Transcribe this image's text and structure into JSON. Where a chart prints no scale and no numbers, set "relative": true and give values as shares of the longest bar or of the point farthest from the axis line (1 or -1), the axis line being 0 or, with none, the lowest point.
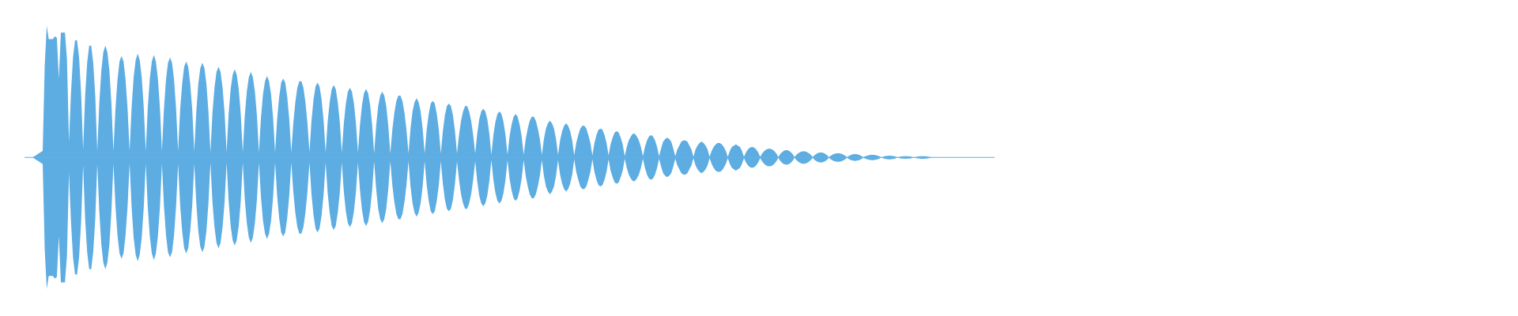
{
  "chart_data": {
    "type": "area",
    "relative": true,
    "categories": [
      null,
      null,
      null,
      null,
      null,
      null,
      null,
      null,
      null,
      null,
      null,
      null,
      null,
      null,
      null,
      null,
      null,
      null,
      null,
      null,
      null,
      null,
      null,
      null,
      null,
      null,
      null,
      null,
      null,
      null,
      null,
      null,
      null,
      null,
      null,
      null,
      null,
      null,
      null,
      null,
      null,
      null,
      null,
      null,
      null,
      null,
      null,
      null,
      null,
      null,
      null,
      null,
      null,
      null,
      null,
      null,
      null,
      null,
      null,
      null,
      null,
      null,
      null,
      null,
      null,
      null,
      null,
      null,
      null,
      null,
      null,
      null,
      null,
      null,
      null,
      null,
      null,
      null,
      null,
      null,
      null,
      null,
      null,
      null,
      null,
      null,
      null,
      null,
      null,
      null,
      null,
      null,
      null,
      null,
      null,
      null,
      null,
      null,
      null,
      null,
      null,
      null,
      null,
      null,
      null,
      null,
      null,
      null,
      null,
      null,
      null,
      null,
      null,
      null,
      null,
      null,
      null,
      null,
      null,
      null,
      null,
      null,
      null,
      null,
      null,
      null,
      null,
      null,
      null,
      null,
      null,
      null,
      null,
      null,
      null,
      null,
      null,
      null,
      null,
      null,
      null,
      null,
      null,
      null,
      null,
      null,
      null,
      null,
      null,
      null,
      null,
      null,
      null,
      null,
      null,
      null,
      null,
      null,
      null,
      null,
      null,
      null,
      null,
      null,
      null,
      null,
      null,
      null,
      null,
      null,
      null,
      null,
      null,
      null,
      null,
      null,
      null,
      null,
      null,
      null,
      null,
      null,
      null,
      null,
      null,
      null,
      null,
      null,
      null,
      null,
      null,
      null,
      null,
      null,
      null,
      null,
      null,
      null,
      null,
      null,
      null,
      null,
      null,
      null,
      null,
      null,
      null,
      null,
      null,
      null,
      null,
      null,
      null,
      null,
      null,
      null,
      null,
      null,
      null,
      null,
      null,
      null,
      null,
      null,
      null,
      null,
      null,
      null,
      null,
      null,
      null,
      null,
      null,
      null,
      null,
      null,
      null,
      null,
      null,
      null,
      null,
      null,
      null,
      null,
      null,
      null,
      null,
      null,
      null,
      null,
      null,
      null,
      null,
      null,
      null,
      null,
      null,
      null,
      null,
      null,
      null,
      null,
      null,
      null,
      null,
      null,
      null,
      null,
      null,
      null,
      null,
      null,
      null,
      null,
      null,
      null,
      null,
      null,
      null,
      null,
      null,
      null,
      null,
      null,
      null,
      null,
      null,
      null,
      null,
      null,
      null,
      null,
      null,
      null,
      null,
      null,
      null,
      null,
      null,
      null,
      null,
      null,
      null,
      null,
      null,
      null,
      null,
      null,
      null,
      null,
      null,
      null,
      null,
      null,
      null,
      null,
      null,
      null,
      null,
      null,
      null,
      null,
      null,
      null,
      null,
      null,
      null,
      null,
      null,
      null,
      null,
      null,
      null,
      null,
      null,
      null,
      null,
      null,
      null,
      null,
      null,
      null,
      null,
      null,
      null,
      null,
      null,
      null,
      null,
      null,
      null,
      null,
      null,
      null,
      null,
      null,
      null,
      null,
      null,
      null,
      null,
      null,
      null,
      null,
      null,
      null,
      null,
      null,
      null,
      null,
      null,
      null,
      null,
      null,
      null,
      null,
      null,
      null,
      null,
      null,
      null,
      null,
      null,
      null,
      null,
      null,
      null,
      null,
      null,
      null,
      null,
      null,
      null,
      null,
      null,
      null,
      null,
      null,
      null,
      null,
      null,
      null,
      null,
      null,
      null,
      null,
      null,
      null,
      null,
      null,
      null,
      null,
      null,
      null,
      null,
      null,
      null,
      null,
      null,
      null,
      null,
      null,
      null,
      null,
      null,
      null,
      null,
      null,
      null,
      null,
      null,
      null,
      null,
      null,
      null,
      null,
      null,
      null,
      null,
      null,
      null,
      null,
      null,
      null,
      null,
      null,
      null,
      null,
      null,
      null,
      null,
      null,
      null,
      null,
      null,
      null,
      null,
      null,
      null,
      null,
      null,
      null,
      null,
      null,
      null,
      null,
      null,
      null,
      null,
      null,
      null,
      null,
      null,
      null,
      null,
      null,
      null,
      null,
      null,
      null,
      null
    ],
    "series": [
      {
        "color": "#5dade2",
        "values": [
          0,
          0,
          0,
          0,
          0,
          0.01,
          0.02,
          0.03,
          0.04,
          0.05,
          0.7,
          1,
          0.9,
          0.9,
          0.9,
          0.92,
          0.91,
          0.6,
          0.95,
          0.95,
          0.95,
          0.75,
          0.12,
          0.49,
          0.76,
          0.89,
          0.89,
          0.76,
          0.49,
          0.06,
          0.47,
          0.72,
          0.85,
          0.85,
          0.72,
          0.47,
          0.05,
          0.41,
          0.66,
          0.8,
          0.85,
          0.8,
          0.66,
          0.41,
          0.05,
          0.37,
          0.59,
          0.73,
          0.77,
          0.73,
          0.59,
          0.37,
          0.05,
          0.38,
          0.61,
          0.74,
          0.79,
          0.74,
          0.61,
          0.38,
          0.05,
          0.38,
          0.6,
          0.73,
          0.78,
          0.73,
          0.6,
          0.38,
          0.05,
          0.37,
          0.59,
          0.72,
          0.76,
          0.72,
          0.59,
          0.37,
          0.05,
          0.36,
          0.56,
          0.69,
          0.73,
          0.69,
          0.56,
          0.36,
          0.05,
          0.35,
          0.56,
          0.68,
          0.72,
          0.68,
          0.56,
          0.35,
          0.04,
          0.34,
          0.53,
          0.65,
          0.69,
          0.65,
          0.53,
          0.34,
          0.04,
          0.33,
          0.52,
          0.63,
          0.67,
          0.63,
          0.52,
          0.33,
          0.04,
          0.32,
          0.5,
          0.61,
          0.65,
          0.61,
          0.5,
          0.32,
          0.04,
          0.3,
          0.48,
          0.58,
          0.62,
          0.58,
          0.48,
          0.3,
          0.04,
          0.29,
          0.46,
          0.57,
          0.6,
          0.57,
          0.46,
          0.29,
          0.04,
          0.26,
          0.42,
          0.53,
          0.58,
          0.58,
          0.53,
          0.42,
          0.26,
          0.04,
          0.28,
          0.44,
          0.54,
          0.57,
          0.54,
          0.44,
          0.28,
          0.04,
          0.27,
          0.42,
          0.52,
          0.55,
          0.52,
          0.42,
          0.27,
          0.04,
          0.26,
          0.41,
          0.5,
          0.53,
          0.5,
          0.41,
          0.26,
          0.04,
          0.25,
          0.4,
          0.49,
          0.52,
          0.49,
          0.4,
          0.25,
          0.03,
          0.24,
          0.39,
          0.47,
          0.5,
          0.47,
          0.39,
          0.24,
          0.03,
          0.21,
          0.34,
          0.43,
          0.47,
          0.47,
          0.43,
          0.34,
          0.21,
          0.03,
          0.22,
          0.35,
          0.42,
          0.45,
          0.42,
          0.35,
          0.22,
          0.03,
          0.21,
          0.33,
          0.41,
          0.43,
          0.41,
          0.33,
          0.21,
          0.03,
          0.2,
          0.32,
          0.39,
          0.41,
          0.39,
          0.32,
          0.2,
          0.03,
          0.17,
          0.28,
          0.35,
          0.39,
          0.39,
          0.35,
          0.28,
          0.17,
          0.03,
          0.18,
          0.29,
          0.35,
          0.37,
          0.35,
          0.29,
          0.18,
          0.02,
          0.17,
          0.27,
          0.33,
          0.35,
          0.33,
          0.27,
          0.17,
          0.02,
          0.16,
          0.25,
          0.31,
          0.33,
          0.31,
          0.25,
          0.16,
          0.02,
          0.14,
          0.22,
          0.28,
          0.31,
          0.31,
          0.28,
          0.22,
          0.14,
          0.02,
          0.14,
          0.22,
          0.26,
          0.28,
          0.26,
          0.22,
          0.14,
          0.02,
          0.13,
          0.2,
          0.24,
          0.26,
          0.24,
          0.2,
          0.13,
          0.015,
          0.11,
          0.17,
          0.22,
          0.24,
          0.24,
          0.22,
          0.17,
          0.11,
          0.015,
          0.11,
          0.17,
          0.21,
          0.22,
          0.21,
          0.17,
          0.11,
          0.015,
          0.1,
          0.15,
          0.19,
          0.2,
          0.19,
          0.15,
          0.1,
          0.01,
          0.08,
          0.13,
          0.16,
          0.18,
          0.18,
          0.16,
          0.13,
          0.08,
          0.01,
          0.08,
          0.13,
          0.16,
          0.17,
          0.16,
          0.13,
          0.08,
          0.01,
          0.07,
          0.12,
          0.14,
          0.15,
          0.14,
          0.12,
          0.07,
          0.01,
          0.06,
          0.09,
          0.12,
          0.13,
          0.13,
          0.12,
          0.09,
          0.06,
          0.005,
          0.06,
          0.09,
          0.11,
          0.12,
          0.11,
          0.09,
          0.06,
          0.005,
          0.05,
          0.08,
          0.1,
          0.11,
          0.11,
          0.1,
          0.08,
          0.05,
          0.005,
          0.05,
          0.08,
          0.09,
          0.1,
          0.09,
          0.08,
          0.05,
          0.005,
          0.039,
          0.062,
          0.075,
          0.08,
          0.075,
          0.062,
          0.039,
          0.005,
          0.03,
          0.049,
          0.061,
          0.067,
          0.067,
          0.061,
          0.049,
          0.03,
          0.003,
          0.027,
          0.043,
          0.053,
          0.056,
          0.053,
          0.043,
          0.027,
          0.003,
          0.021,
          0.034,
          0.043,
          0.047,
          0.047,
          0.043,
          0.034,
          0.021,
          0.003,
          0.019,
          0.029,
          0.036,
          0.038,
          0.036,
          0.029,
          0.019,
          0.002,
          0.014,
          0.023,
          0.029,
          0.032,
          0.032,
          0.029,
          0.023,
          0.014,
          0.002,
          0.013,
          0.02,
          0.024,
          0.026,
          0.024,
          0.02,
          0.013,
          0.002,
          0.009,
          0.014,
          0.018,
          0.02,
          0.02,
          0.018,
          0.014,
          0.009,
          0,
          0.007,
          0.011,
          0.013,
          0.014,
          0.013,
          0.011,
          0.007,
          0,
          0.005,
          0.008,
          0.009,
          0.01,
          0.009,
          0.008,
          0.005,
          0,
          0.004,
          0.007,
          0.009,
          0.01,
          0.01,
          0.009,
          0.007,
          0.004,
          0,
          0,
          0,
          0,
          0,
          0,
          0,
          0,
          0,
          0,
          0,
          0,
          0,
          0,
          0,
          0,
          0,
          0,
          0,
          0,
          0,
          0,
          0,
          0,
          0,
          0,
          0,
          0,
          0,
          0,
          0,
          0
        ]
      },
      {
        "color": "#5dade2",
        "values": [
          0,
          0,
          0,
          0,
          0,
          -0.01,
          -0.02,
          -0.03,
          -0.04,
          -0.05,
          -0.7,
          -1,
          -0.9,
          -0.9,
          -0.9,
          -0.92,
          -0.91,
          -0.6,
          -0.95,
          -0.95,
          -0.95,
          -0.75,
          -0.12,
          -0.49,
          -0.76,
          -0.89,
          -0.89,
          -0.76,
          -0.49,
          -0.06,
          -0.47,
          -0.72,
          -0.85,
          -0.85,
          -0.72,
          -0.47,
          -0.05,
          -0.41,
          -0.66,
          -0.8,
          -0.85,
          -0.8,
          -0.66,
          -0.41,
          -0.05,
          -0.37,
          -0.59,
          -0.73,
          -0.77,
          -0.73,
          -0.59,
          -0.37,
          -0.05,
          -0.38,
          -0.61,
          -0.74,
          -0.79,
          -0.74,
          -0.61,
          -0.38,
          -0.05,
          -0.38,
          -0.6,
          -0.73,
          -0.78,
          -0.73,
          -0.6,
          -0.38,
          -0.05,
          -0.37,
          -0.59,
          -0.72,
          -0.76,
          -0.72,
          -0.59,
          -0.37,
          -0.05,
          -0.36,
          -0.56,
          -0.69,
          -0.73,
          -0.69,
          -0.56,
          -0.36,
          -0.05,
          -0.35,
          -0.56,
          -0.68,
          -0.72,
          -0.68,
          -0.56,
          -0.35,
          -0.04,
          -0.34,
          -0.53,
          -0.65,
          -0.69,
          -0.65,
          -0.53,
          -0.34,
          -0.04,
          -0.33,
          -0.52,
          -0.63,
          -0.67,
          -0.63,
          -0.52,
          -0.33,
          -0.04,
          -0.32,
          -0.5,
          -0.61,
          -0.65,
          -0.61,
          -0.5,
          -0.32,
          -0.04,
          -0.3,
          -0.48,
          -0.58,
          -0.62,
          -0.58,
          -0.48,
          -0.3,
          -0.04,
          -0.29,
          -0.46,
          -0.57,
          -0.6,
          -0.57,
          -0.46,
          -0.29,
          -0.04,
          -0.26,
          -0.42,
          -0.53,
          -0.58,
          -0.58,
          -0.53,
          -0.42,
          -0.26,
          -0.04,
          -0.28,
          -0.44,
          -0.54,
          -0.57,
          -0.54,
          -0.44,
          -0.28,
          -0.04,
          -0.27,
          -0.42,
          -0.52,
          -0.55,
          -0.52,
          -0.42,
          -0.27,
          -0.04,
          -0.26,
          -0.41,
          -0.5,
          -0.53,
          -0.5,
          -0.41,
          -0.26,
          -0.04,
          -0.25,
          -0.4,
          -0.49,
          -0.52,
          -0.49,
          -0.4,
          -0.25,
          -0.03,
          -0.24,
          -0.39,
          -0.47,
          -0.5,
          -0.47,
          -0.39,
          -0.24,
          -0.03,
          -0.21,
          -0.34,
          -0.43,
          -0.47,
          -0.47,
          -0.43,
          -0.34,
          -0.21,
          -0.03,
          -0.22,
          -0.35,
          -0.42,
          -0.45,
          -0.42,
          -0.35,
          -0.22,
          -0.03,
          -0.21,
          -0.33,
          -0.41,
          -0.43,
          -0.41,
          -0.33,
          -0.21,
          -0.03,
          -0.2,
          -0.32,
          -0.39,
          -0.41,
          -0.39,
          -0.32,
          -0.2,
          -0.03,
          -0.17,
          -0.28,
          -0.35,
          -0.39,
          -0.39,
          -0.35,
          -0.28,
          -0.17,
          -0.03,
          -0.18,
          -0.29,
          -0.35,
          -0.37,
          -0.35,
          -0.29,
          -0.18,
          -0.02,
          -0.17,
          -0.27,
          -0.33,
          -0.35,
          -0.33,
          -0.27,
          -0.17,
          -0.02,
          -0.16,
          -0.25,
          -0.31,
          -0.33,
          -0.31,
          -0.25,
          -0.16,
          -0.02,
          -0.14,
          -0.22,
          -0.28,
          -0.31,
          -0.31,
          -0.28,
          -0.22,
          -0.14,
          -0.02,
          -0.14,
          -0.22,
          -0.26,
          -0.28,
          -0.26,
          -0.22,
          -0.14,
          -0.02,
          -0.13,
          -0.2,
          -0.24,
          -0.26,
          -0.24,
          -0.2,
          -0.13,
          -0.015,
          -0.11,
          -0.17,
          -0.22,
          -0.24,
          -0.24,
          -0.22,
          -0.17,
          -0.11,
          -0.015,
          -0.11,
          -0.17,
          -0.21,
          -0.22,
          -0.21,
          -0.17,
          -0.11,
          -0.015,
          -0.1,
          -0.15,
          -0.19,
          -0.2,
          -0.19,
          -0.15,
          -0.1,
          -0.01,
          -0.08,
          -0.13,
          -0.16,
          -0.18,
          -0.18,
          -0.16,
          -0.13,
          -0.08,
          -0.01,
          -0.08,
          -0.13,
          -0.16,
          -0.17,
          -0.16,
          -0.13,
          -0.08,
          -0.01,
          -0.07,
          -0.12,
          -0.14,
          -0.15,
          -0.14,
          -0.12,
          -0.07,
          -0.01,
          -0.06,
          -0.09,
          -0.12,
          -0.13,
          -0.13,
          -0.12,
          -0.09,
          -0.06,
          -0.005,
          -0.06,
          -0.09,
          -0.11,
          -0.12,
          -0.11,
          -0.09,
          -0.06,
          -0.005,
          -0.05,
          -0.08,
          -0.1,
          -0.11,
          -0.11,
          -0.1,
          -0.08,
          -0.05,
          -0.005,
          -0.05,
          -0.08,
          -0.09,
          -0.1,
          -0.09,
          -0.08,
          -0.05,
          -0.005,
          -0.039,
          -0.062,
          -0.075,
          -0.08,
          -0.075,
          -0.062,
          -0.039,
          -0.005,
          -0.03,
          -0.049,
          -0.061,
          -0.067,
          -0.067,
          -0.061,
          -0.049,
          -0.03,
          -0.003,
          -0.027,
          -0.043,
          -0.053,
          -0.056,
          -0.053,
          -0.043,
          -0.027,
          -0.003,
          -0.021,
          -0.034,
          -0.043,
          -0.047,
          -0.047,
          -0.043,
          -0.034,
          -0.021,
          -0.003,
          -0.019,
          -0.029,
          -0.036,
          -0.038,
          -0.036,
          -0.029,
          -0.019,
          -0.002,
          -0.014,
          -0.023,
          -0.029,
          -0.032,
          -0.032,
          -0.029,
          -0.023,
          -0.014,
          -0.002,
          -0.013,
          -0.02,
          -0.024,
          -0.026,
          -0.024,
          -0.02,
          -0.013,
          -0.002,
          -0.009,
          -0.014,
          -0.018,
          -0.02,
          -0.02,
          -0.018,
          -0.014,
          -0.009,
          0,
          -0.007,
          -0.011,
          -0.013,
          -0.014,
          -0.013,
          -0.011,
          -0.007,
          0,
          -0.005,
          -0.008,
          -0.009,
          -0.01,
          -0.009,
          -0.008,
          -0.005,
          0,
          -0.004,
          -0.007,
          -0.009,
          -0.01,
          -0.01,
          -0.009,
          -0.007,
          -0.004,
          0,
          0,
          0,
          0,
          0,
          0,
          0,
          0,
          0,
          0,
          0,
          0,
          0,
          0,
          0,
          0,
          0,
          0,
          0,
          0,
          0,
          0,
          0,
          0,
          0,
          0,
          0,
          0,
          0,
          0,
          0,
          0
        ]
      }
    ]
  }
}
